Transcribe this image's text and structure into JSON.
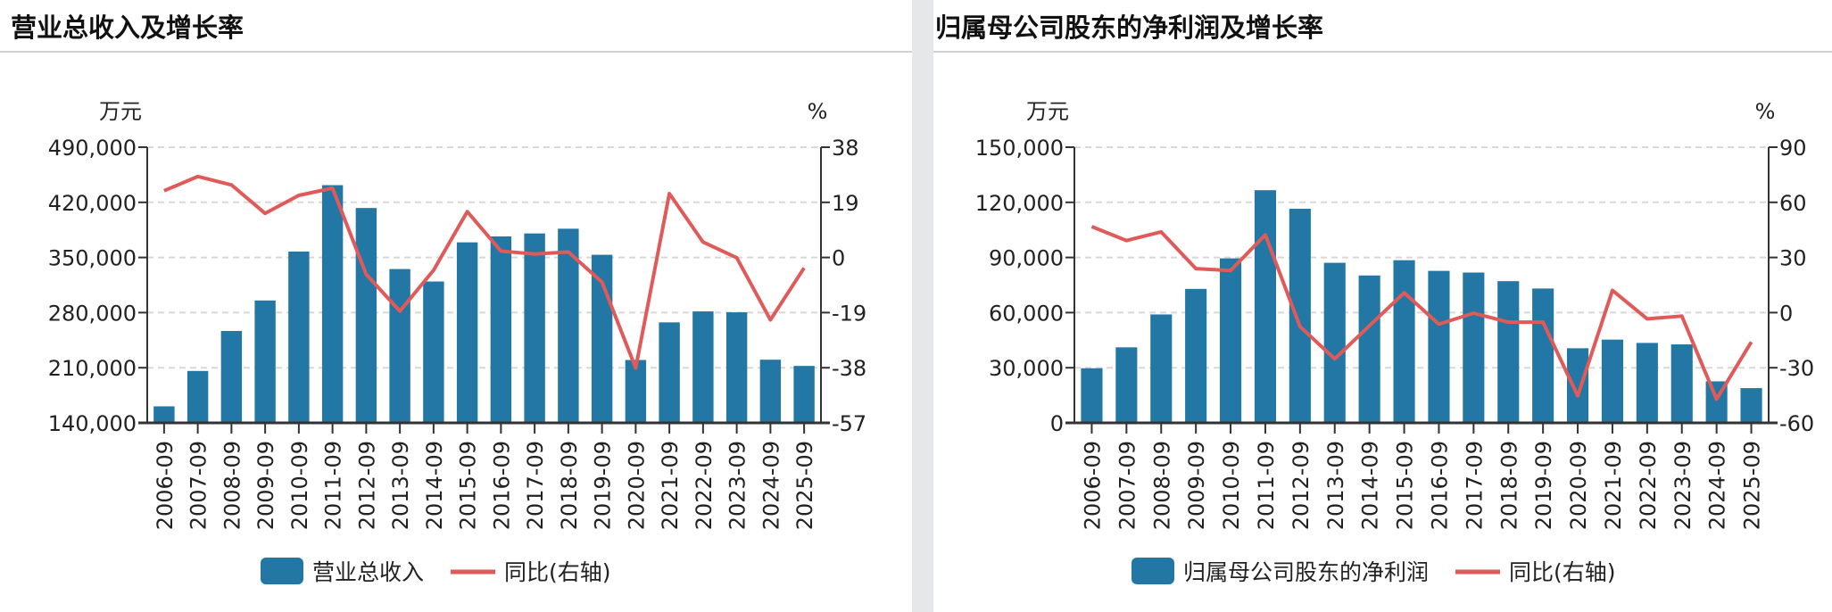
{
  "colors": {
    "bar": "#2277a4",
    "line": "#e05a5a",
    "grid": "#d8d8d8",
    "axis": "#333333"
  },
  "chart_data": [
    {
      "type": "bar+line",
      "title": "营业总收入及增长率",
      "left_unit": "万元",
      "right_unit": "%",
      "categories": [
        "2006-09",
        "2007-09",
        "2008-09",
        "2009-09",
        "2010-09",
        "2011-09",
        "2012-09",
        "2013-09",
        "2014-09",
        "2015-09",
        "2016-09",
        "2017-09",
        "2018-09",
        "2019-09",
        "2020-09",
        "2021-09",
        "2022-09",
        "2023-09",
        "2024-09",
        "2025-09"
      ],
      "left_axis": {
        "ylim": [
          140000,
          490000
        ],
        "ticks": [
          140000,
          210000,
          280000,
          350000,
          420000,
          490000
        ],
        "tick_labels": [
          "140,000",
          "210,000",
          "280,000",
          "350,000",
          "420,000",
          "490,000"
        ]
      },
      "right_axis": {
        "ylim": [
          -57,
          38
        ],
        "ticks": [
          -57,
          -38,
          -19,
          0,
          19,
          38
        ],
        "tick_labels": [
          "-57",
          "-38",
          "-19",
          "0",
          "19",
          "38"
        ]
      },
      "series": [
        {
          "name": "营业总收入",
          "type": "bar",
          "axis": "left",
          "values": [
            161000,
            205900,
            256700,
            295400,
            357500,
            441800,
            412800,
            335300,
            319500,
            369200,
            376700,
            380500,
            386500,
            353400,
            219800,
            267600,
            281500,
            280400,
            220200,
            212300
          ]
        },
        {
          "name": "同比(右轴)",
          "type": "line",
          "axis": "right",
          "values": [
            23.0,
            27.9,
            25.0,
            15.2,
            21.4,
            23.9,
            -5.8,
            -18.5,
            -4.4,
            15.8,
            2.2,
            1.2,
            1.9,
            -8.5,
            -38.1,
            22.0,
            5.3,
            -0.1,
            -21.5,
            -3.6
          ]
        }
      ],
      "grid": true,
      "legend_position": "bottom"
    },
    {
      "type": "bar+line",
      "title": "归属母公司股东的净利润及增长率",
      "left_unit": "万元",
      "right_unit": "%",
      "categories": [
        "2006-09",
        "2007-09",
        "2008-09",
        "2009-09",
        "2010-09",
        "2011-09",
        "2012-09",
        "2013-09",
        "2014-09",
        "2015-09",
        "2016-09",
        "2017-09",
        "2018-09",
        "2019-09",
        "2020-09",
        "2021-09",
        "2022-09",
        "2023-09",
        "2024-09",
        "2025-09"
      ],
      "left_axis": {
        "ylim": [
          0,
          150000
        ],
        "ticks": [
          0,
          30000,
          60000,
          90000,
          120000,
          150000
        ],
        "tick_labels": [
          "0",
          "30,000",
          "60,000",
          "90,000",
          "120,000",
          "150,000"
        ]
      },
      "right_axis": {
        "ylim": [
          -60,
          90
        ],
        "ticks": [
          -60,
          -30,
          0,
          30,
          60,
          90
        ],
        "tick_labels": [
          "-60",
          "-30",
          "0",
          "30",
          "60",
          "90"
        ]
      },
      "series": [
        {
          "name": "归属母公司股东的净利润",
          "type": "bar",
          "axis": "left",
          "values": [
            29700,
            41100,
            59000,
            72900,
            89500,
            126600,
            116500,
            87100,
            80200,
            88500,
            82700,
            81800,
            77100,
            73100,
            40600,
            45300,
            43500,
            42700,
            22600,
            18900
          ]
        },
        {
          "name": "同比(右轴)",
          "type": "line",
          "axis": "right",
          "values": [
            46.8,
            39.2,
            43.9,
            23.9,
            22.9,
            42.3,
            -7.6,
            -25.2,
            -7.1,
            10.8,
            -6.3,
            -0.3,
            -5.2,
            -5.2,
            -45.3,
            12.1,
            -3.4,
            -1.9,
            -47.1,
            -16.0
          ]
        }
      ],
      "grid": true,
      "legend_position": "bottom"
    }
  ]
}
